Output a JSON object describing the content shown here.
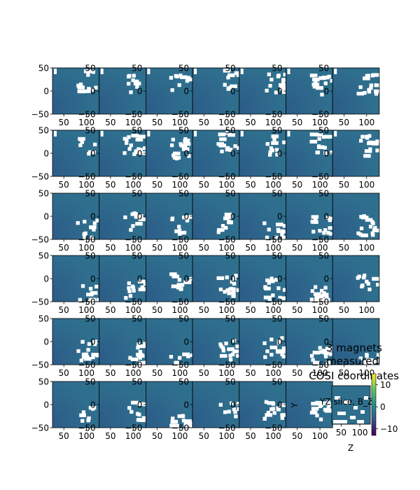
{
  "chart_data": {
    "type": "heatmap",
    "title_lines": [
      "3 magnets",
      "measured",
      "COSI coordinates"
    ],
    "inner_title": "YZ slice, B_Z",
    "xlabel": "Z",
    "ylabel": "Y",
    "x_ticks": [
      50,
      100
    ],
    "y_ticks": [
      50,
      0,
      -50
    ],
    "xlim": [
      25,
      128
    ],
    "ylim": [
      -50,
      50
    ],
    "grid_rows": 6,
    "grid_cols": 7,
    "colorbar": {
      "ticks": [
        10,
        0,
        -10
      ],
      "range": [
        -13,
        15
      ]
    },
    "colors": {
      "base": "#2f6f8e",
      "mask": "#ffffff",
      "cmap": [
        "#440154",
        "#3b528b",
        "#21918c",
        "#5ec962",
        "#fde725"
      ]
    }
  }
}
